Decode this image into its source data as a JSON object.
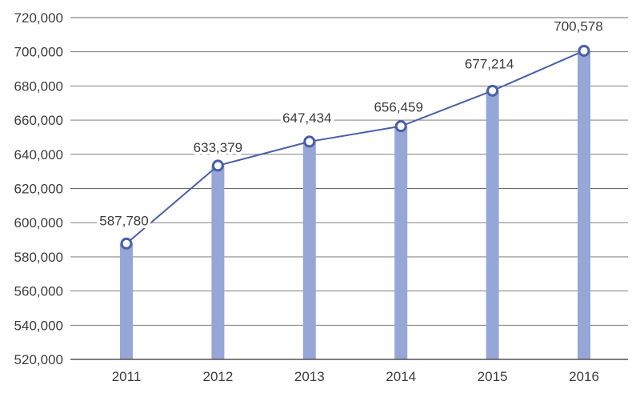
{
  "chart_data": {
    "type": "bar",
    "categories": [
      "2011",
      "2012",
      "2013",
      "2014",
      "2015",
      "2016"
    ],
    "values": [
      587780,
      633379,
      647434,
      656459,
      677214,
      700578
    ],
    "data_labels": [
      "587,780",
      "633,379",
      "647,434",
      "656,459",
      "677,214",
      "700,578"
    ],
    "overlay_line": true,
    "title": "",
    "xlabel": "",
    "ylabel": "",
    "ylim": [
      520000,
      720000
    ],
    "yticks": [
      520000,
      540000,
      560000,
      580000,
      600000,
      620000,
      640000,
      660000,
      680000,
      700000,
      720000
    ],
    "ytick_labels": [
      "520,000",
      "540,000",
      "560,000",
      "580,000",
      "600,000",
      "620,000",
      "640,000",
      "660,000",
      "680,000",
      "700,000",
      "720,000"
    ],
    "grid": true,
    "legend": "none",
    "colors": {
      "bar": "#96a6d6",
      "line": "#4a5fa8",
      "marker_fill": "#ffffff",
      "marker_stroke": "#4a5fa8",
      "grid": "#6b6b6b",
      "axis": "#555555",
      "text": "#3c3c3c"
    }
  }
}
